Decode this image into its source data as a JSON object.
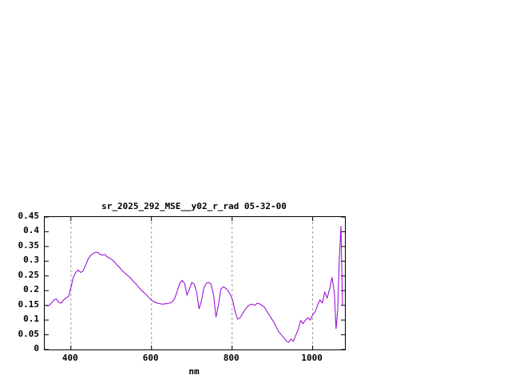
{
  "page": {
    "background": "#ffffff"
  },
  "chart_data": {
    "type": "line",
    "title": "sr_2025_292_MSE__y02_r_rad 05-32-00",
    "xlabel": "nm",
    "ylabel": "",
    "xlim": [
      335,
      1080
    ],
    "ylim": [
      0,
      0.45
    ],
    "xticks": [
      400,
      600,
      800,
      1000
    ],
    "xtick_labels": [
      "400",
      "600",
      "800",
      "1000"
    ],
    "yticks": [
      0,
      0.05,
      0.1,
      0.15,
      0.2,
      0.25,
      0.3,
      0.35,
      0.4,
      0.45
    ],
    "ytick_labels": [
      "0",
      "0.05",
      "0.1",
      "0.15",
      "0.2",
      "0.25",
      "0.3",
      "0.35",
      "0.4",
      "0.45"
    ],
    "grid": "vertical-dashed",
    "grid_color": "#9a9a9a",
    "line_color": "#9400d3",
    "border_color": "#000000",
    "legend": "none",
    "series": [
      {
        "name": "sr_2025_292_MSE__y02_r_rad",
        "x": [
          340,
          346,
          352,
          358,
          364,
          370,
          376,
          382,
          388,
          394,
          400,
          406,
          412,
          418,
          424,
          430,
          436,
          442,
          448,
          454,
          460,
          466,
          472,
          478,
          484,
          490,
          496,
          502,
          508,
          514,
          520,
          526,
          532,
          538,
          544,
          550,
          556,
          562,
          568,
          574,
          580,
          586,
          592,
          598,
          604,
          610,
          616,
          622,
          628,
          634,
          640,
          646,
          652,
          658,
          664,
          670,
          676,
          682,
          688,
          694,
          700,
          706,
          712,
          718,
          724,
          730,
          736,
          742,
          748,
          754,
          760,
          766,
          772,
          778,
          784,
          790,
          796,
          802,
          808,
          814,
          820,
          826,
          832,
          838,
          844,
          850,
          856,
          862,
          868,
          874,
          880,
          886,
          892,
          898,
          904,
          910,
          916,
          922,
          928,
          934,
          940,
          946,
          952,
          958,
          964,
          970,
          976,
          982,
          988,
          994,
          1000,
          1006,
          1012,
          1018,
          1024,
          1030,
          1036,
          1042,
          1048,
          1054,
          1058,
          1062,
          1066,
          1070,
          1074
        ],
        "y": [
          0.148,
          0.15,
          0.158,
          0.168,
          0.172,
          0.16,
          0.158,
          0.168,
          0.175,
          0.18,
          0.21,
          0.245,
          0.262,
          0.27,
          0.262,
          0.266,
          0.285,
          0.305,
          0.318,
          0.325,
          0.33,
          0.33,
          0.324,
          0.32,
          0.323,
          0.315,
          0.31,
          0.305,
          0.298,
          0.288,
          0.28,
          0.27,
          0.262,
          0.254,
          0.248,
          0.24,
          0.23,
          0.222,
          0.212,
          0.203,
          0.195,
          0.188,
          0.178,
          0.17,
          0.164,
          0.16,
          0.157,
          0.155,
          0.154,
          0.155,
          0.156,
          0.158,
          0.162,
          0.175,
          0.198,
          0.225,
          0.235,
          0.225,
          0.185,
          0.205,
          0.228,
          0.222,
          0.195,
          0.138,
          0.165,
          0.21,
          0.225,
          0.228,
          0.222,
          0.185,
          0.11,
          0.15,
          0.205,
          0.213,
          0.208,
          0.2,
          0.185,
          0.165,
          0.125,
          0.103,
          0.108,
          0.122,
          0.135,
          0.145,
          0.152,
          0.154,
          0.15,
          0.157,
          0.155,
          0.15,
          0.144,
          0.13,
          0.118,
          0.105,
          0.092,
          0.075,
          0.06,
          0.05,
          0.04,
          0.03,
          0.024,
          0.035,
          0.028,
          0.048,
          0.068,
          0.098,
          0.088,
          0.1,
          0.108,
          0.1,
          0.118,
          0.128,
          0.15,
          0.168,
          0.158,
          0.195,
          0.175,
          0.205,
          0.245,
          0.19,
          0.07,
          0.13,
          0.3,
          0.42,
          0.15
        ]
      }
    ]
  }
}
